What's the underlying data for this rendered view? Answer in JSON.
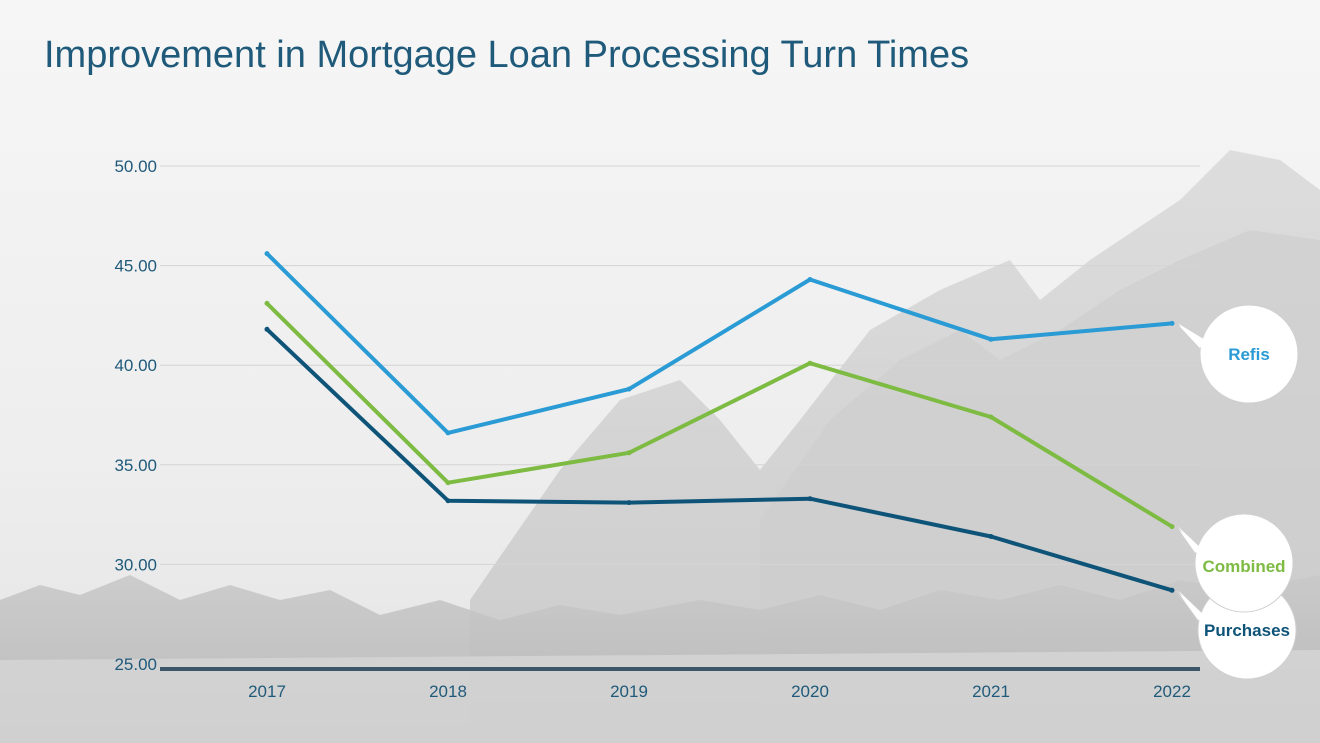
{
  "chart_data": {
    "type": "line",
    "title": "Improvement in Mortgage Loan Processing Turn Times",
    "x": [
      "2017",
      "2018",
      "2019",
      "2020",
      "2021",
      "2022"
    ],
    "ylim": [
      25,
      50
    ],
    "yticks": [
      "25.00",
      "30.00",
      "35.00",
      "40.00",
      "45.00",
      "50.00"
    ],
    "grid": true,
    "series": [
      {
        "name": "Refis",
        "color": "#2a9bd4",
        "values": [
          45.6,
          36.6,
          38.8,
          44.3,
          41.3,
          42.1
        ]
      },
      {
        "name": "Combined",
        "color": "#7dbb42",
        "values": [
          43.1,
          34.1,
          35.6,
          40.1,
          37.4,
          31.9
        ]
      },
      {
        "name": "Purchases",
        "color": "#0e5479",
        "values": [
          41.8,
          33.2,
          33.1,
          33.3,
          31.4,
          28.7
        ]
      }
    ],
    "legend": "callouts at line ends"
  }
}
